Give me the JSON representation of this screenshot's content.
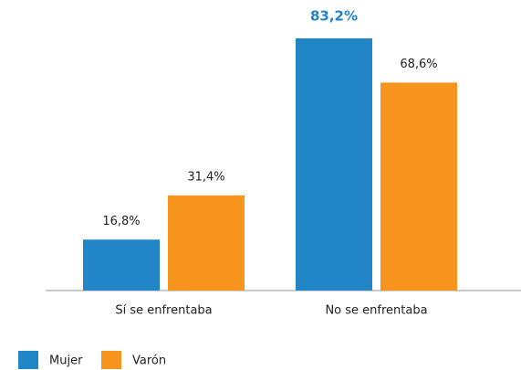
{
  "chart_data": {
    "type": "bar",
    "categories": [
      "Sí se enfrentaba",
      "No se enfrentaba"
    ],
    "series": [
      {
        "name": "Mujer",
        "color": "#2185c6",
        "values": [
          16.8,
          83.2
        ],
        "value_labels": [
          "16,8%",
          "83,2%"
        ]
      },
      {
        "name": "Varón",
        "color": "#f7941d",
        "values": [
          31.4,
          68.6
        ],
        "value_labels": [
          "31,4%",
          "68,6%"
        ]
      }
    ]
  }
}
